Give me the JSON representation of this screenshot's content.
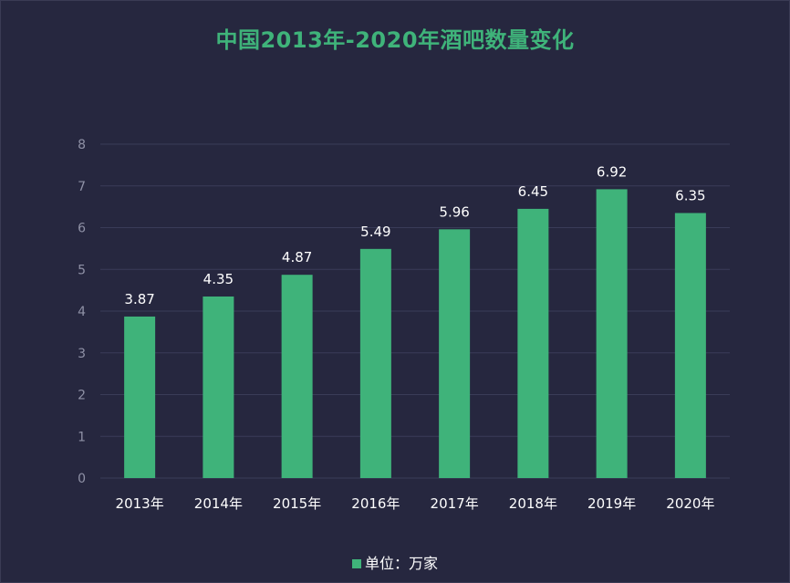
{
  "chart_data": {
    "type": "bar",
    "title": "中国2013年-2020年酒吧数量变化",
    "categories": [
      "2013年",
      "2014年",
      "2015年",
      "2016年",
      "2017年",
      "2018年",
      "2019年",
      "2020年"
    ],
    "series": [
      {
        "name": "单位：万家",
        "values": [
          3.87,
          4.35,
          4.87,
          5.49,
          5.96,
          6.45,
          6.92,
          6.35
        ]
      }
    ],
    "data_labels": [
      "3.87",
      "4.35",
      "4.87",
      "5.49",
      "5.96",
      "6.45",
      "6.92",
      "6.35"
    ],
    "y_ticks": [
      "0",
      "1",
      "2",
      "3",
      "4",
      "5",
      "6",
      "7",
      "8"
    ],
    "ylim": [
      0,
      8
    ],
    "grid": true,
    "legend_position": "bottom",
    "colors": {
      "bar": "#3fb37a",
      "title": "#3fb37a",
      "background": "#26273f",
      "grid": "#3a3c58",
      "axis_text": "#8f91a6",
      "label_text": "#ffffff"
    }
  }
}
